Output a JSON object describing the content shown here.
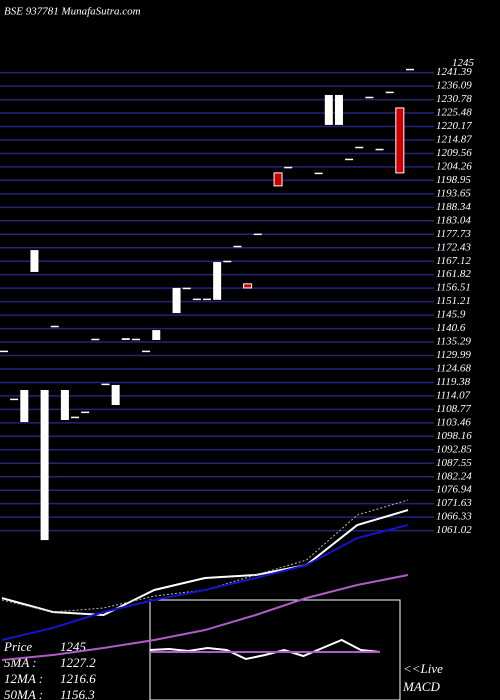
{
  "chart_data": [
    {
      "type": "candlestick",
      "title": "BSE 937781 MunafaSutra.com",
      "open": [
        1131.4,
        1112.5,
        1103.8,
        1162.9,
        1057.3,
        1141.2,
        1104.6,
        1105.4,
        1107.4,
        1136.1,
        1118.4,
        1110.5,
        1136.1,
        1136.1,
        1131.4,
        1136.1,
        null,
        1146.7,
        1156.2,
        1151.9,
        1151.9,
        1151.9,
        1166.8,
        1172.7,
        1158.2,
        1177.5,
        null,
        1201.9,
        1203.8,
        null,
        null,
        1201.5,
        1220.8,
        1220.8,
        1207.0,
        1211.7,
        1231.4,
        1210.9,
        1233.4,
        1227.5,
        1242.4
      ],
      "close": [
        1131.9,
        1113.0,
        1116.4,
        1171.5,
        1116.4,
        1141.7,
        1116.4,
        1105.9,
        1107.9,
        1136.6,
        1118.9,
        1118.4,
        1136.8,
        1136.6,
        1131.9,
        1140.0,
        null,
        1156.6,
        1156.7,
        1152.4,
        1152.4,
        1166.8,
        1167.3,
        1173.2,
        1156.6,
        1178.0,
        null,
        1196.8,
        1204.3,
        null,
        null,
        1202.0,
        1232.6,
        1232.6,
        1207.5,
        1212.2,
        1231.9,
        1211.4,
        1233.9,
        1201.9,
        1242.9
      ],
      "up_color": "#ffffff",
      "down_color": "#cc0000",
      "ylim": [
        1040,
        1270
      ],
      "yticks": [
        1241.39,
        1236.09,
        1230.78,
        1225.48,
        1220.17,
        1214.87,
        1209.56,
        1204.26,
        1198.95,
        1193.65,
        1188.34,
        1183.04,
        1177.73,
        1172.43,
        1167.12,
        1161.82,
        1156.51,
        1151.21,
        1145.9,
        1140.6,
        1135.29,
        1129.99,
        1124.68,
        1119.38,
        1114.07,
        1108.77,
        1103.46,
        1098.16,
        1092.85,
        1087.55,
        1082.24,
        1076.94,
        1071.63,
        1066.33,
        1061.02
      ],
      "grid": true,
      "grid_color": "#24247a",
      "last_price": 1245
    },
    {
      "type": "line",
      "x": [
        0,
        5,
        10,
        15,
        20,
        25,
        30,
        35,
        40
      ],
      "xlim": [
        0,
        40
      ],
      "ylim": [
        1000,
        1260
      ],
      "series": [
        {
          "name": "Price",
          "color": "#ffffff",
          "values": [
            1089.5,
            1069.3,
            1065.0,
            1101.1,
            1118.4,
            1122.8,
            1137.2,
            1194.9,
            1216.6
          ],
          "legend_value": 1245
        },
        {
          "name": "5MA :",
          "color": "#bbbbbb",
          "values": [
            1086.7,
            1069.3,
            1075.1,
            1092.4,
            1101.1,
            1122.8,
            1144.4,
            1209.4,
            1231.1
          ],
          "legend_value": 1227.2
        },
        {
          "name": "12MA :",
          "color": "#1414c8",
          "values": [
            1028.9,
            1046.2,
            1069.3,
            1086.7,
            1101.1,
            1118.4,
            1137.2,
            1176.2,
            1195.0
          ],
          "legend_value": 1216.6
        },
        {
          "name": "50MA :",
          "color": "#b05cc8",
          "values": [
            1000.0,
            1007.2,
            1017.3,
            1028.9,
            1043.3,
            1065.0,
            1089.6,
            1108.3,
            1122.8
          ],
          "legend_value": 1156.3
        }
      ]
    },
    {
      "type": "line",
      "ylim": [
        -2.5,
        2.5
      ],
      "label": [
        "<<Live",
        "MACD"
      ],
      "series": [
        {
          "color": "#ffffff",
          "values": [
            0.0,
            0.05,
            -0.05,
            0.1,
            0,
            -0.45,
            -0.25,
            0,
            -0.3,
            0.1,
            0.5,
            0,
            -0.1
          ]
        },
        {
          "color": "#b05cc8",
          "values": [
            -0.1,
            -0.1,
            -0.1,
            -0.1,
            -0.1,
            -0.1,
            -0.1,
            -0.1,
            -0.1,
            -0.1,
            -0.1,
            -0.1,
            -0.1
          ]
        }
      ]
    }
  ]
}
